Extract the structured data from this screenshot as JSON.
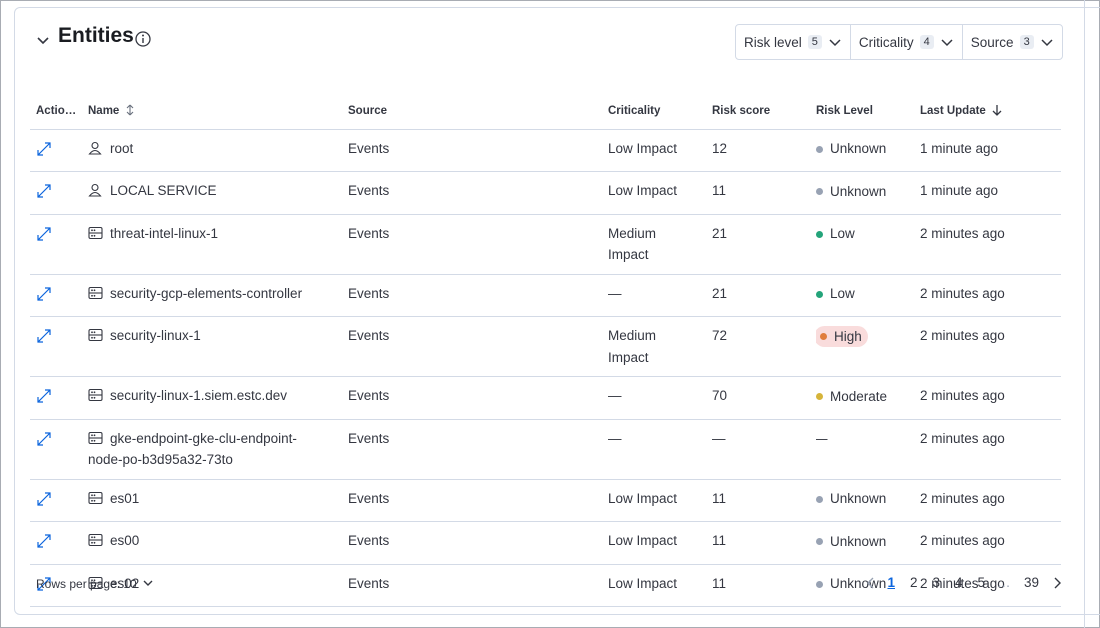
{
  "header": {
    "title": "Entities",
    "filters": [
      {
        "label": "Risk level",
        "count": 5
      },
      {
        "label": "Criticality",
        "count": 4
      },
      {
        "label": "Source",
        "count": 3
      }
    ]
  },
  "table": {
    "columns": [
      "Actio…",
      "Name",
      "Source",
      "Criticality",
      "Risk score",
      "Risk Level",
      "Last Update"
    ],
    "rows": [
      {
        "icon": "user",
        "name": "root",
        "source": "Events",
        "criticality": "Low Impact",
        "risk_score": 12,
        "risk_level": "Unknown",
        "risk_color": "#98a2b3",
        "last_update": "1 minute ago"
      },
      {
        "icon": "user",
        "name": "LOCAL SERVICE",
        "source": "Events",
        "criticality": "Low Impact",
        "risk_score": 11,
        "risk_level": "Unknown",
        "risk_color": "#98a2b3",
        "last_update": "1 minute ago"
      },
      {
        "icon": "host",
        "name": "threat-intel-linux-1",
        "source": "Events",
        "criticality": "Medium Impact",
        "risk_score": 21,
        "risk_level": "Low",
        "risk_color": "#24a47a",
        "last_update": "2 minutes ago"
      },
      {
        "icon": "host",
        "name": "security-gcp-elements-controller",
        "source": "Events",
        "criticality": "—",
        "risk_score": 21,
        "risk_level": "Low",
        "risk_color": "#24a47a",
        "last_update": "2 minutes ago"
      },
      {
        "icon": "host",
        "name": "security-linux-1",
        "source": "Events",
        "criticality": "Medium Impact",
        "risk_score": 72,
        "risk_level": "High",
        "risk_color": "#e07d3c",
        "badge_color": "#f9dcdc",
        "last_update": "2 minutes ago"
      },
      {
        "icon": "host",
        "name": "security-linux-1.siem.estc.dev",
        "source": "Events",
        "criticality": "—",
        "risk_score": 70,
        "risk_level": "Moderate",
        "risk_color": "#d6b43a",
        "last_update": "2 minutes ago"
      },
      {
        "icon": "host",
        "name": "gke-endpoint-gke-clu-endpoint-node-po-b3d95a32-73to",
        "source": "Events",
        "criticality": "—",
        "risk_score": "—",
        "risk_level": "—",
        "last_update": "2 minutes ago"
      },
      {
        "icon": "host",
        "name": "es01",
        "source": "Events",
        "criticality": "Low Impact",
        "risk_score": 11,
        "risk_level": "Unknown",
        "risk_color": "#98a2b3",
        "last_update": "2 minutes ago"
      },
      {
        "icon": "host",
        "name": "es00",
        "source": "Events",
        "criticality": "Low Impact",
        "risk_score": 11,
        "risk_level": "Unknown",
        "risk_color": "#98a2b3",
        "last_update": "2 minutes ago"
      },
      {
        "icon": "host",
        "name": "es02",
        "source": "Events",
        "criticality": "Low Impact",
        "risk_score": 11,
        "risk_level": "Unknown",
        "risk_color": "#98a2b3",
        "last_update": "2 minutes ago"
      }
    ]
  },
  "pagination": {
    "rows_per_page": "Rows per page: 10",
    "pages": [
      1,
      2,
      3,
      4,
      5,
      "…",
      39
    ],
    "current": 1
  }
}
